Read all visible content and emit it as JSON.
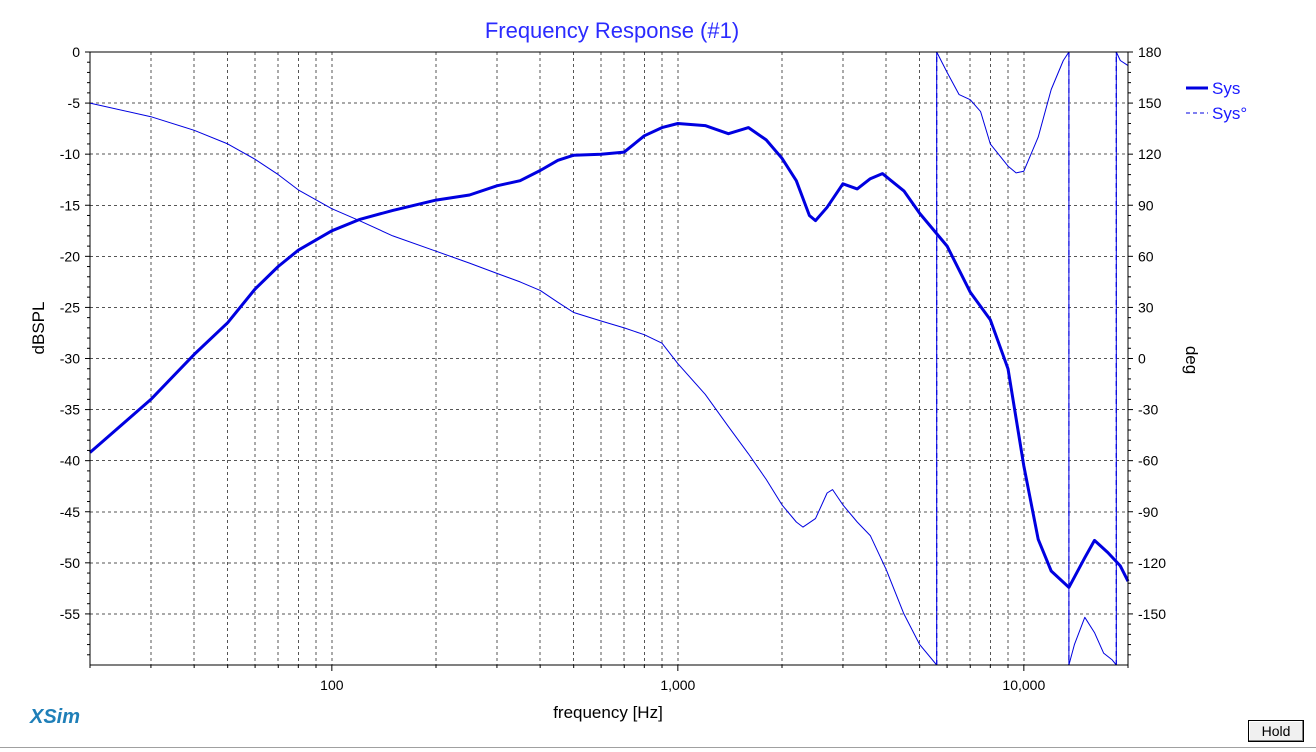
{
  "chart_data": {
    "type": "line",
    "title": "Frequency Response (#1)",
    "xlabel": "frequency [Hz]",
    "ylabel_left": "dBSPL",
    "ylabel_right": "deg",
    "x_scale": "log",
    "xlim": [
      20,
      20000
    ],
    "x_tick_labels": [
      "100",
      "1,000",
      "10,000"
    ],
    "ylim_left": [
      -60,
      0
    ],
    "y_left_ticks": [
      "0",
      "-5",
      "-10",
      "-15",
      "-20",
      "-25",
      "-30",
      "-35",
      "-40",
      "-45",
      "-50",
      "-55"
    ],
    "ylim_right": [
      -180,
      180
    ],
    "y_right_ticks": [
      "180",
      "150",
      "120",
      "90",
      "60",
      "30",
      "0",
      "-30",
      "-60",
      "-90",
      "-120",
      "-150"
    ],
    "grid": true,
    "legend_position": "top-right",
    "series": [
      {
        "name": "Sys",
        "axis": "left",
        "style": "solid-thick",
        "color": "#0000e0",
        "points": [
          [
            20,
            -39.2
          ],
          [
            30,
            -34
          ],
          [
            40,
            -29.6
          ],
          [
            50,
            -26.5
          ],
          [
            60,
            -23.2
          ],
          [
            70,
            -21
          ],
          [
            80,
            -19.4
          ],
          [
            100,
            -17.5
          ],
          [
            120,
            -16.4
          ],
          [
            150,
            -15.5
          ],
          [
            200,
            -14.5
          ],
          [
            250,
            -14
          ],
          [
            300,
            -13.1
          ],
          [
            350,
            -12.6
          ],
          [
            400,
            -11.6
          ],
          [
            450,
            -10.6
          ],
          [
            500,
            -10.1
          ],
          [
            600,
            -10
          ],
          [
            700,
            -9.8
          ],
          [
            800,
            -8.2
          ],
          [
            900,
            -7.4
          ],
          [
            1000,
            -7
          ],
          [
            1200,
            -7.2
          ],
          [
            1400,
            -8
          ],
          [
            1600,
            -7.4
          ],
          [
            1800,
            -8.6
          ],
          [
            2000,
            -10.4
          ],
          [
            2200,
            -12.6
          ],
          [
            2400,
            -16
          ],
          [
            2500,
            -16.5
          ],
          [
            2700,
            -15.2
          ],
          [
            3000,
            -12.9
          ],
          [
            3300,
            -13.4
          ],
          [
            3600,
            -12.4
          ],
          [
            3900,
            -11.9
          ],
          [
            4500,
            -13.6
          ],
          [
            5000,
            -15.8
          ],
          [
            6000,
            -19
          ],
          [
            7000,
            -23.5
          ],
          [
            8000,
            -26.2
          ],
          [
            9000,
            -31
          ],
          [
            10000,
            -40.5
          ],
          [
            11000,
            -47.7
          ],
          [
            12000,
            -50.8
          ],
          [
            13500,
            -52.4
          ],
          [
            15000,
            -49.5
          ],
          [
            16000,
            -47.8
          ],
          [
            17500,
            -49
          ],
          [
            19000,
            -50.3
          ],
          [
            20000,
            -51.8
          ]
        ]
      },
      {
        "name": "Sys°",
        "axis": "right",
        "style": "solid-thin",
        "color": "#0000e0",
        "points": [
          [
            20,
            150
          ],
          [
            30,
            142
          ],
          [
            40,
            134
          ],
          [
            50,
            126
          ],
          [
            60,
            117
          ],
          [
            70,
            108
          ],
          [
            80,
            99
          ],
          [
            100,
            88
          ],
          [
            120,
            81
          ],
          [
            150,
            72
          ],
          [
            200,
            63
          ],
          [
            250,
            56
          ],
          [
            300,
            50
          ],
          [
            350,
            45
          ],
          [
            400,
            40
          ],
          [
            450,
            33
          ],
          [
            500,
            27
          ],
          [
            600,
            22
          ],
          [
            700,
            18
          ],
          [
            800,
            14
          ],
          [
            900,
            9
          ],
          [
            1000,
            -3
          ],
          [
            1200,
            -21
          ],
          [
            1400,
            -40
          ],
          [
            1600,
            -56
          ],
          [
            1800,
            -71
          ],
          [
            2000,
            -86
          ],
          [
            2200,
            -96
          ],
          [
            2300,
            -99
          ],
          [
            2500,
            -94
          ],
          [
            2700,
            -79
          ],
          [
            2800,
            -77
          ],
          [
            3000,
            -86
          ],
          [
            3300,
            -96
          ],
          [
            3600,
            -104
          ],
          [
            4000,
            -124
          ],
          [
            4500,
            -150
          ],
          [
            5000,
            -168
          ],
          [
            5600,
            -180
          ],
          [
            5600,
            180
          ],
          [
            6000,
            168
          ],
          [
            6500,
            155
          ],
          [
            7000,
            152
          ],
          [
            7500,
            145
          ],
          [
            8000,
            126
          ],
          [
            9000,
            113
          ],
          [
            9500,
            109
          ],
          [
            10000,
            110
          ],
          [
            11000,
            130
          ],
          [
            12000,
            158
          ],
          [
            13000,
            175
          ],
          [
            13500,
            180
          ],
          [
            13500,
            -180
          ],
          [
            14000,
            -168
          ],
          [
            15000,
            -152
          ],
          [
            16000,
            -161
          ],
          [
            17000,
            -173
          ],
          [
            18000,
            -177
          ],
          [
            18500,
            -180
          ],
          [
            18500,
            180
          ],
          [
            19000,
            175
          ],
          [
            20000,
            172
          ]
        ]
      }
    ]
  },
  "branding": {
    "logo": "XSim"
  },
  "controls": {
    "hold_label": "Hold"
  }
}
